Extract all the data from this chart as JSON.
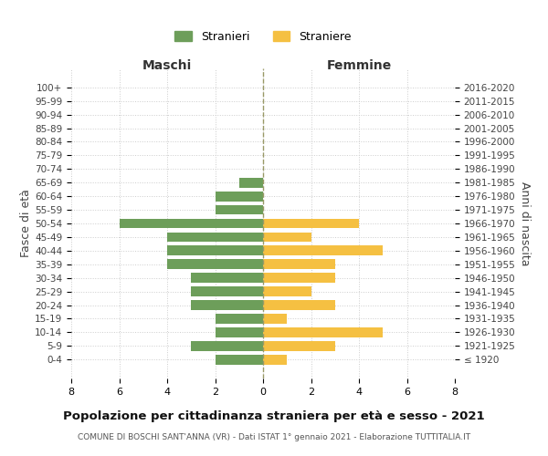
{
  "age_groups": [
    "100+",
    "95-99",
    "90-94",
    "85-89",
    "80-84",
    "75-79",
    "70-74",
    "65-69",
    "60-64",
    "55-59",
    "50-54",
    "45-49",
    "40-44",
    "35-39",
    "30-34",
    "25-29",
    "20-24",
    "15-19",
    "10-14",
    "5-9",
    "0-4"
  ],
  "birth_years": [
    "≤ 1920",
    "1921-1925",
    "1926-1930",
    "1931-1935",
    "1936-1940",
    "1941-1945",
    "1946-1950",
    "1951-1955",
    "1956-1960",
    "1961-1965",
    "1966-1970",
    "1971-1975",
    "1976-1980",
    "1981-1985",
    "1986-1990",
    "1991-1995",
    "1996-2000",
    "2001-2005",
    "2006-2010",
    "2011-2015",
    "2016-2020"
  ],
  "maschi": [
    0,
    0,
    0,
    0,
    0,
    0,
    0,
    1,
    2,
    2,
    6,
    4,
    4,
    4,
    3,
    3,
    3,
    2,
    2,
    3,
    2
  ],
  "femmine": [
    0,
    0,
    0,
    0,
    0,
    0,
    0,
    0,
    0,
    0,
    4,
    2,
    5,
    3,
    3,
    2,
    3,
    1,
    5,
    3,
    1
  ],
  "male_color": "#6d9e5a",
  "female_color": "#f5c042",
  "background_color": "#ffffff",
  "grid_color": "#cccccc",
  "center_line_color": "#999966",
  "xlim": 8,
  "title": "Popolazione per cittadinanza straniera per età e sesso - 2021",
  "subtitle": "COMUNE DI BOSCHI SANT'ANNA (VR) - Dati ISTAT 1° gennaio 2021 - Elaborazione TUTTITALIA.IT",
  "xlabel_left": "Maschi",
  "xlabel_right": "Femmine",
  "ylabel_left": "Fasce di età",
  "ylabel_right": "Anni di nascita",
  "legend_male": "Stranieri",
  "legend_female": "Straniere"
}
